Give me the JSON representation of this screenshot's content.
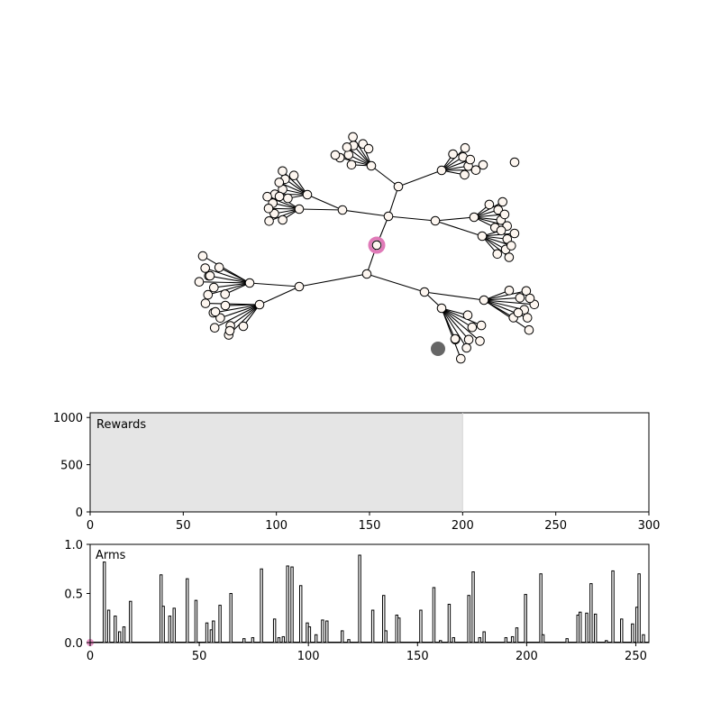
{
  "chart_data": [
    {
      "type": "network",
      "description_free": true,
      "tree": {
        "node_fill": "#fdf6f0",
        "node_stroke": "#000000",
        "edge_color": "#000000",
        "highlight_color": "#e07ab8",
        "shadow_color": "#666666"
      }
    },
    {
      "type": "area",
      "title": "Rewards",
      "xlim": [
        0,
        300
      ],
      "ylim": [
        0,
        1050
      ],
      "xticks": [
        0,
        50,
        100,
        150,
        200,
        250,
        300
      ],
      "yticks": [
        0,
        500,
        1000
      ],
      "shaded_x_end": 200,
      "shade_color": "#e5e5e5"
    },
    {
      "type": "bar",
      "title": "Arms",
      "xlim": [
        0,
        256
      ],
      "ylim": [
        0,
        1.0
      ],
      "xticks": [
        0,
        50,
        100,
        150,
        200,
        250
      ],
      "yticks": [
        "0.0",
        "0.5",
        "1.0"
      ],
      "marker_color": "#e07ab8",
      "bars": [
        [
          6,
          0.82
        ],
        [
          8,
          0.33
        ],
        [
          11,
          0.27
        ],
        [
          13,
          0.11
        ],
        [
          15,
          0.16
        ],
        [
          18,
          0.42
        ],
        [
          32,
          0.69
        ],
        [
          33,
          0.37
        ],
        [
          36,
          0.27
        ],
        [
          38,
          0.35
        ],
        [
          44,
          0.65
        ],
        [
          48,
          0.43
        ],
        [
          53,
          0.2
        ],
        [
          55,
          0.13
        ],
        [
          56,
          0.22
        ],
        [
          59,
          0.38
        ],
        [
          64,
          0.5
        ],
        [
          70,
          0.04
        ],
        [
          74,
          0.05
        ],
        [
          78,
          0.75
        ],
        [
          84,
          0.24
        ],
        [
          86,
          0.05
        ],
        [
          88,
          0.06
        ],
        [
          90,
          0.78
        ],
        [
          92,
          0.77
        ],
        [
          96,
          0.58
        ],
        [
          99,
          0.2
        ],
        [
          100,
          0.16
        ],
        [
          103,
          0.08
        ],
        [
          106,
          0.23
        ],
        [
          108,
          0.22
        ],
        [
          115,
          0.12
        ],
        [
          118,
          0.03
        ],
        [
          123,
          0.89
        ],
        [
          129,
          0.33
        ],
        [
          134,
          0.48
        ],
        [
          135,
          0.12
        ],
        [
          140,
          0.28
        ],
        [
          141,
          0.25
        ],
        [
          151,
          0.33
        ],
        [
          157,
          0.56
        ],
        [
          160,
          0.02
        ],
        [
          164,
          0.39
        ],
        [
          166,
          0.05
        ],
        [
          173,
          0.48
        ],
        [
          175,
          0.72
        ],
        [
          178,
          0.05
        ],
        [
          180,
          0.11
        ],
        [
          190,
          0.05
        ],
        [
          193,
          0.06
        ],
        [
          195,
          0.15
        ],
        [
          199,
          0.49
        ],
        [
          206,
          0.7
        ],
        [
          207,
          0.08
        ],
        [
          218,
          0.04
        ],
        [
          223,
          0.28
        ],
        [
          224,
          0.31
        ],
        [
          227,
          0.3
        ],
        [
          229,
          0.6
        ],
        [
          231,
          0.29
        ],
        [
          236,
          0.02
        ],
        [
          239,
          0.73
        ],
        [
          243,
          0.24
        ],
        [
          248,
          0.19
        ],
        [
          250,
          0.36
        ],
        [
          251,
          0.7
        ],
        [
          253,
          0.08
        ]
      ]
    }
  ]
}
